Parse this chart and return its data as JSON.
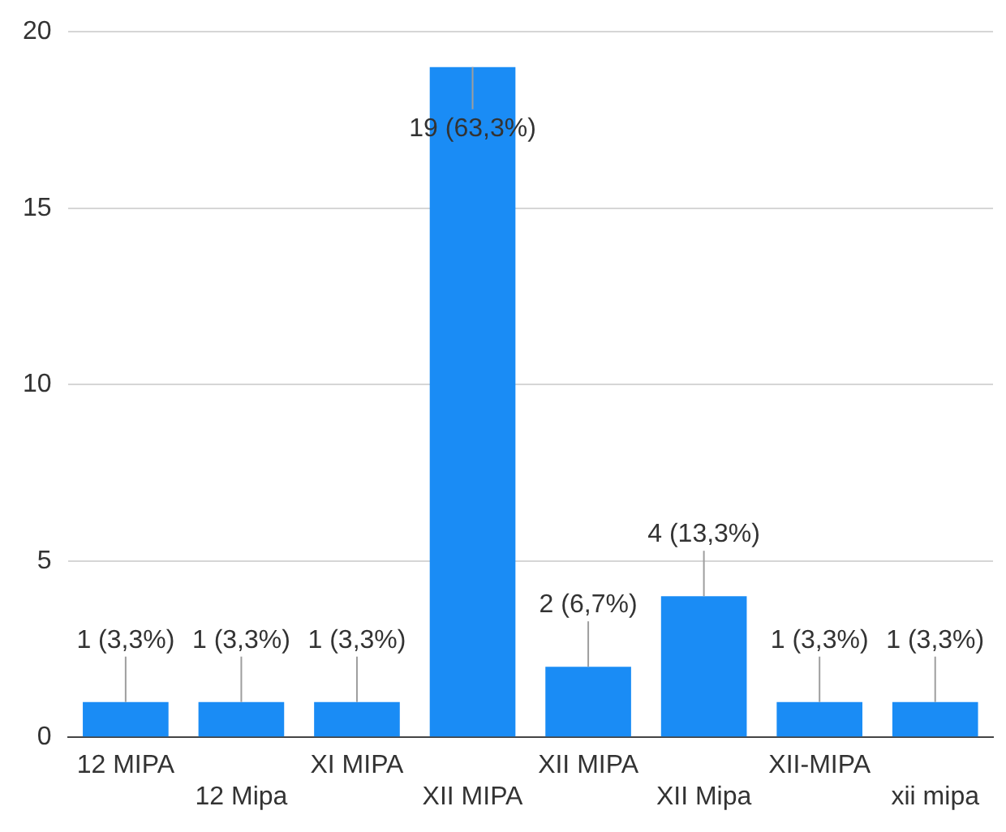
{
  "chart_data": {
    "type": "bar",
    "categories": [
      "12 MIPA",
      "12 Mipa",
      "XI MIPA",
      "XII MIPA",
      "XII MIPA",
      "XII Mipa",
      "XII-MIPA",
      "xii mipa"
    ],
    "values": [
      1,
      1,
      1,
      19,
      2,
      4,
      1,
      1
    ],
    "value_labels": [
      "1 (3,3%)",
      "1 (3,3%)",
      "1 (3,3%)",
      "19 (63,3%)",
      "2 (6,7%)",
      "4 (13,3%)",
      "1 (3,3%)",
      "1 (3,3%)"
    ],
    "color": "#1a8cf5",
    "ylim": [
      0,
      20
    ],
    "yticks": [
      0,
      5,
      10,
      15,
      20
    ],
    "grid": "y",
    "legend": false
  }
}
